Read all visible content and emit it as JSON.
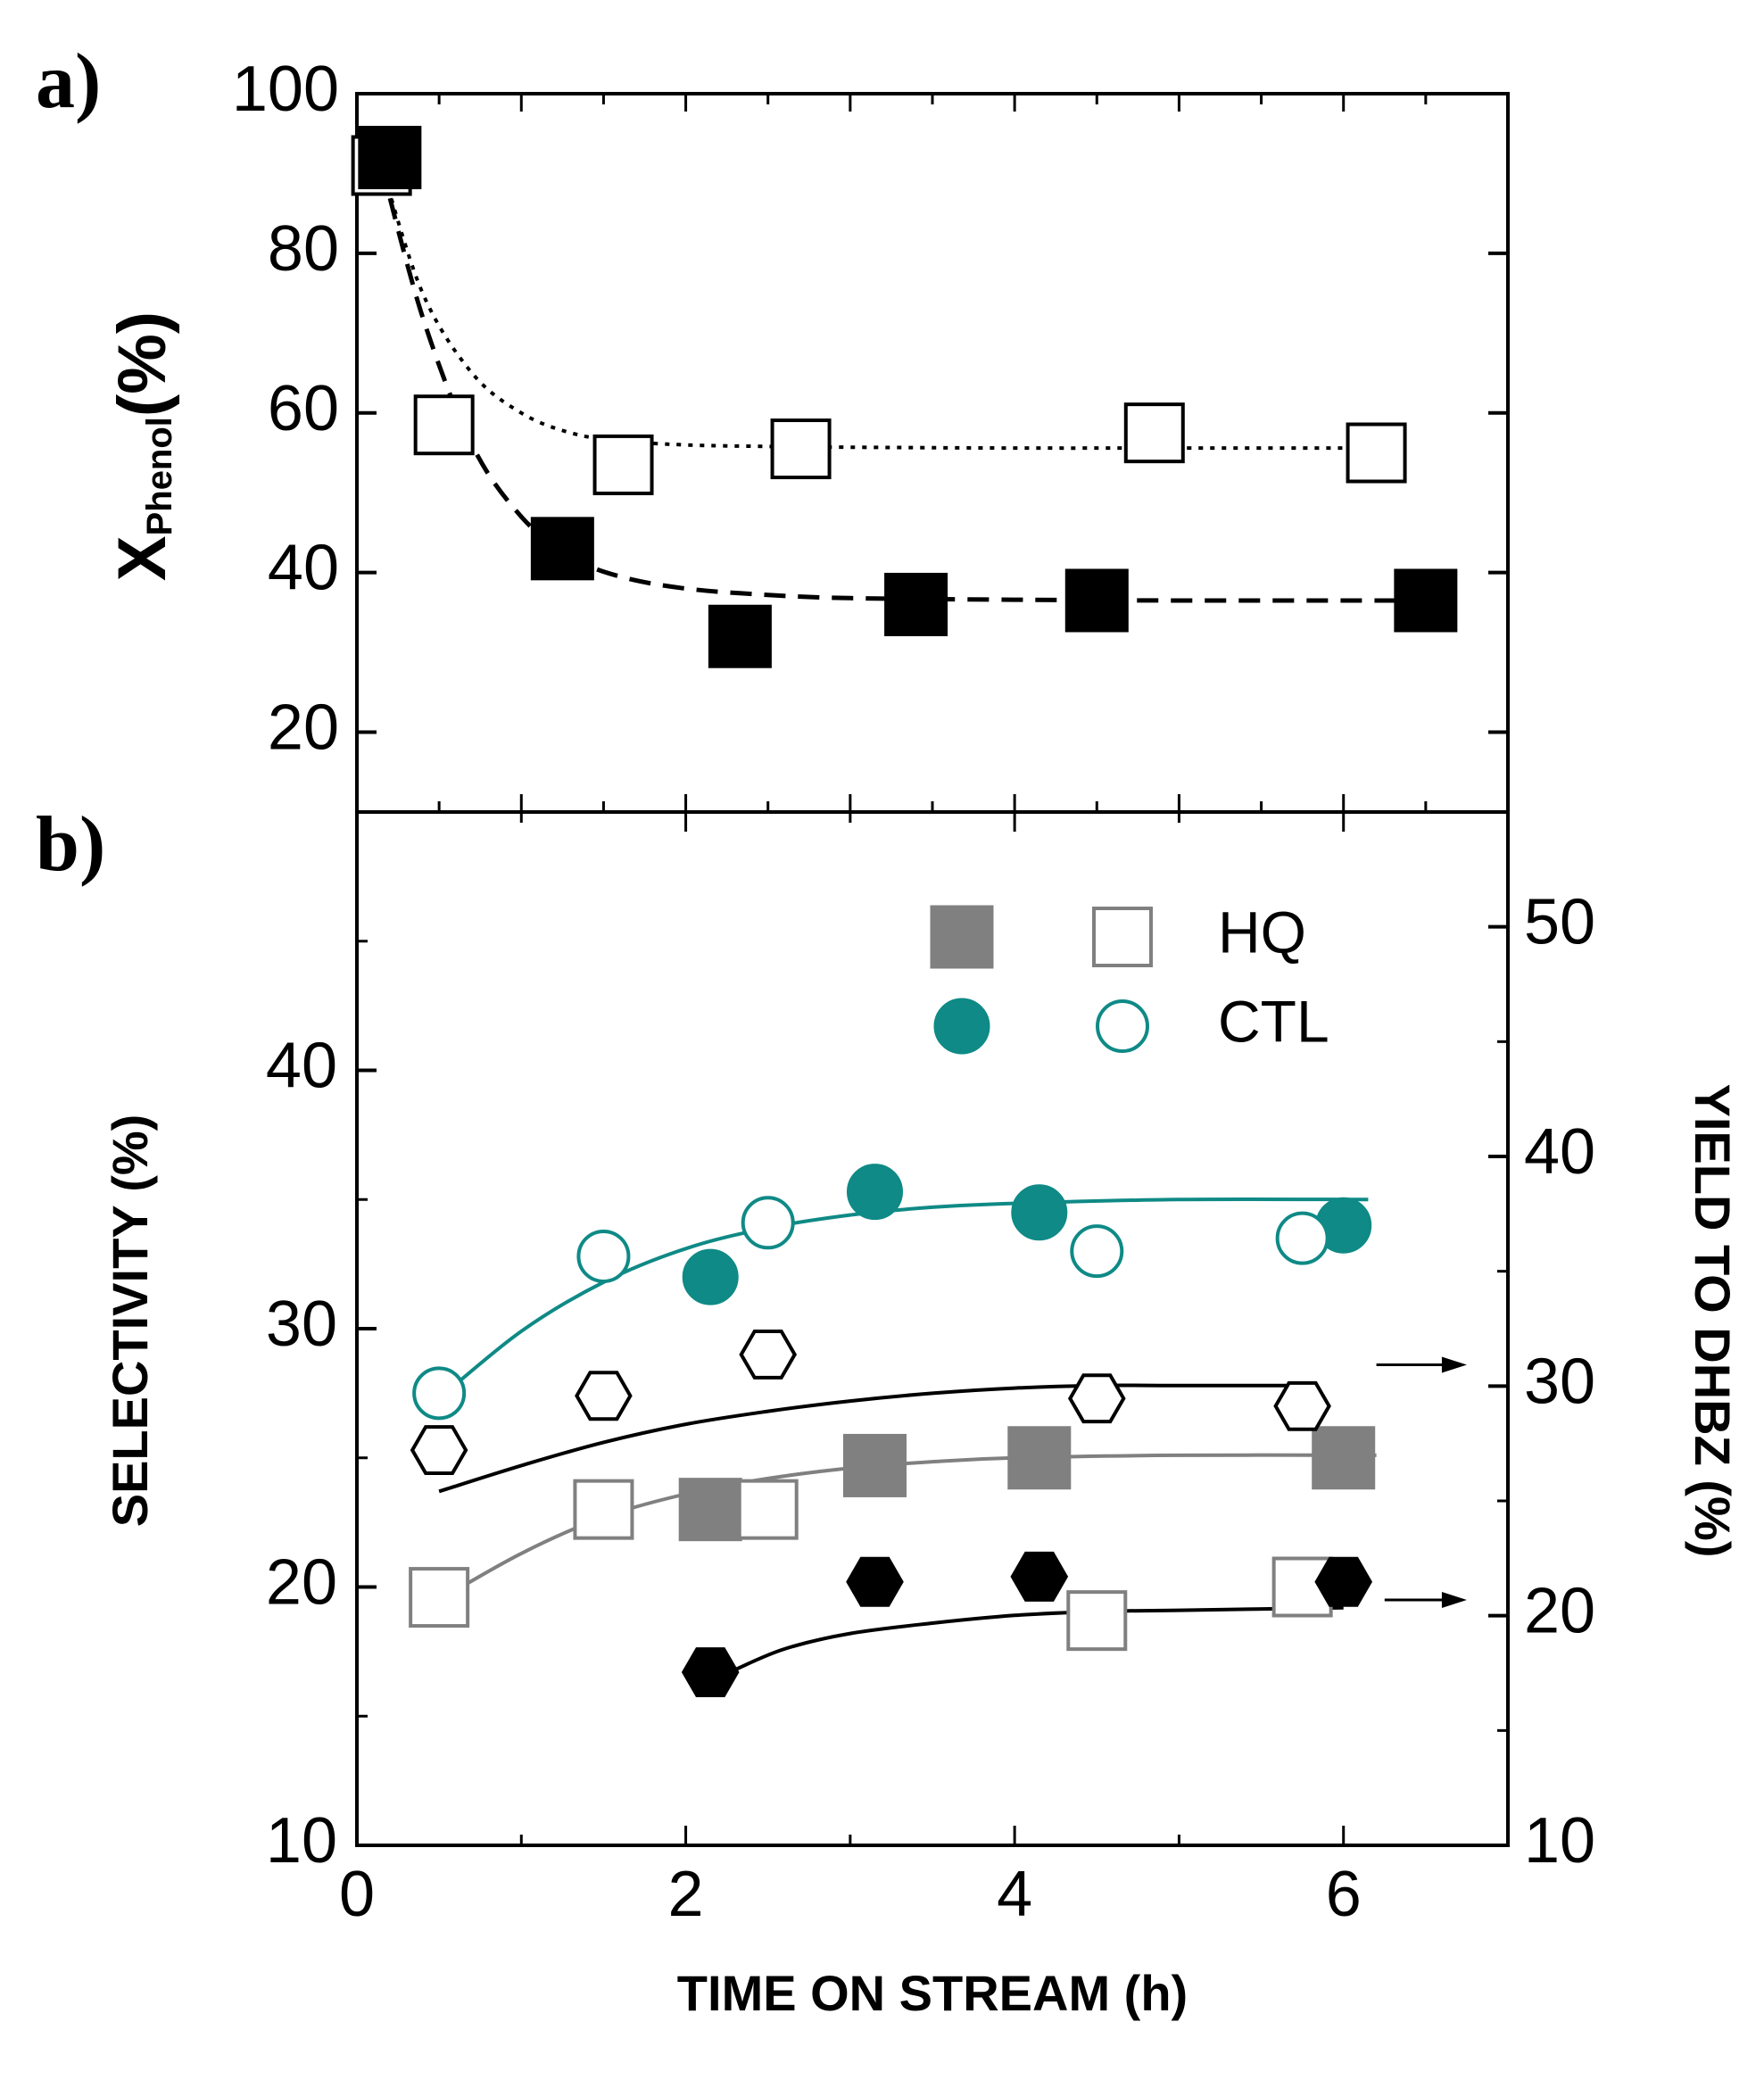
{
  "panel_labels": {
    "a": "a)",
    "b": "b)"
  },
  "colors": {
    "ink": "#000000",
    "teal": "#0f8a86",
    "gray": "#808080"
  },
  "chart_data": [
    {
      "id": "a",
      "type": "scatter",
      "title": "",
      "xlabel": "",
      "ylabel": {
        "main": "X",
        "sub": "Phenol",
        "suffix": "(%)"
      },
      "xlim": [
        0,
        7
      ],
      "ylim": [
        10,
        100
      ],
      "yticks": [
        20,
        40,
        60,
        80,
        100
      ],
      "y_minor_step": 10,
      "x_minor_step": 0.5,
      "series": [
        {
          "name": "open squares",
          "marker": "square-open",
          "color": "#000000",
          "x": [
            0.15,
            0.53,
            1.62,
            2.7,
            4.85,
            6.2
          ],
          "y": [
            91,
            58.5,
            53.5,
            55.5,
            57.5,
            55
          ]
        },
        {
          "name": "filled squares",
          "marker": "square-filled",
          "color": "#000000",
          "x": [
            0.2,
            1.25,
            2.33,
            3.4,
            4.5,
            6.5
          ],
          "y": [
            92,
            43,
            32,
            36,
            36.5,
            36.5
          ]
        }
      ],
      "fits": [
        {
          "name": "open fit (dotted)",
          "style": "dotted",
          "color": "#000000",
          "x": [
            0.15,
            0.4,
            0.7,
            1.0,
            1.3,
            1.6,
            2.0,
            2.5,
            3.0,
            4.0,
            5.0,
            6.2
          ],
          "y": [
            91,
            75,
            65,
            60,
            57.5,
            56.5,
            56,
            55.8,
            55.7,
            55.6,
            55.6,
            55.6
          ]
        },
        {
          "name": "filled fit (dashed)",
          "style": "dashed",
          "color": "#000000",
          "x": [
            0.15,
            0.4,
            0.7,
            1.0,
            1.3,
            1.6,
            2.0,
            2.5,
            3.0,
            4.0,
            5.0,
            6.5
          ],
          "y": [
            91,
            72,
            56,
            47,
            42,
            39.5,
            38,
            37.2,
            36.8,
            36.6,
            36.5,
            36.5
          ]
        }
      ]
    },
    {
      "id": "b",
      "type": "scatter",
      "title": "",
      "xlabel": "TIME ON STREAM (h)",
      "ylabel": "SELECTIVITY (%)",
      "y2label": "YIELD TO DHBZ (%)",
      "xlim": [
        0,
        7
      ],
      "xticks": [
        0,
        2,
        4,
        6
      ],
      "x_minor_step": 1,
      "ylim": [
        10,
        50
      ],
      "yticks": [
        10,
        20,
        30,
        40
      ],
      "y_minor_step": 5,
      "y2lim": [
        10,
        55
      ],
      "y2ticks": [
        10,
        20,
        30,
        40,
        50
      ],
      "y2_minor_step": 5,
      "legend": {
        "placement": "top-right",
        "entries": [
          {
            "label": "HQ",
            "filled": "square-filled",
            "open": "square-open",
            "filled_color": "#808080",
            "open_color": "#808080"
          },
          {
            "label": "CTL",
            "filled": "circle-filled",
            "open": "circle-open",
            "filled_color": "#0f8a86",
            "open_color": "#0f8a86"
          }
        ]
      },
      "series": [
        {
          "name": "CTL filled",
          "marker": "circle-filled",
          "color": "#0f8a86",
          "axis": "left",
          "x": [
            2.15,
            3.15,
            4.15,
            6.0
          ],
          "y": [
            32,
            35.3,
            34.5,
            34
          ]
        },
        {
          "name": "CTL open",
          "marker": "circle-open",
          "color": "#0f8a86",
          "axis": "left",
          "x": [
            0.5,
            1.5,
            2.5,
            4.5,
            5.75
          ],
          "y": [
            27.5,
            32.8,
            34.1,
            33,
            33.5
          ]
        },
        {
          "name": "HQ filled",
          "marker": "square-filled",
          "color": "#808080",
          "axis": "left",
          "x": [
            2.15,
            3.15,
            4.15,
            6.0
          ],
          "y": [
            23,
            24.7,
            25,
            25
          ]
        },
        {
          "name": "HQ open",
          "marker": "square-open",
          "color": "#808080",
          "axis": "left",
          "x": [
            0.5,
            1.5,
            2.5,
            4.5,
            5.75
          ],
          "y": [
            19.6,
            23,
            23,
            18.7,
            20
          ]
        },
        {
          "name": "DHBZ yield filled",
          "marker": "hexagon-filled",
          "color": "#000000",
          "axis": "left",
          "x": [
            2.15,
            3.15,
            4.15,
            6.0
          ],
          "y": [
            16.7,
            20.2,
            20.4,
            20.2
          ]
        },
        {
          "name": "DHBZ yield open",
          "marker": "hexagon-open",
          "color": "#000000",
          "axis": "left",
          "x": [
            0.5,
            1.5,
            2.5,
            4.5,
            5.75
          ],
          "y": [
            25.3,
            27.4,
            29,
            27.3,
            27
          ]
        }
      ],
      "fits": [
        {
          "name": "CTL fit",
          "style": "solid",
          "color": "#0f8a86",
          "x": [
            0.5,
            1.0,
            1.5,
            2.0,
            2.5,
            3.0,
            3.5,
            4.0,
            5.0,
            6.15
          ],
          "y": [
            27.3,
            29.9,
            31.8,
            33.1,
            33.9,
            34.4,
            34.7,
            34.85,
            35.0,
            35.0
          ]
        },
        {
          "name": "HQ fit",
          "style": "solid",
          "color": "#808080",
          "x": [
            0.5,
            1.0,
            1.5,
            2.0,
            2.5,
            3.0,
            3.5,
            4.0,
            5.0,
            6.2
          ],
          "y": [
            19.5,
            21.3,
            22.7,
            23.6,
            24.2,
            24.6,
            24.85,
            25.0,
            25.1,
            25.1
          ]
        },
        {
          "name": "DHBZ open fit",
          "style": "solid",
          "color": "#000000",
          "x": [
            0.5,
            1.0,
            1.5,
            2.0,
            2.5,
            3.0,
            3.5,
            4.0,
            4.5,
            5.0,
            5.75
          ],
          "y": [
            23.7,
            24.7,
            25.6,
            26.3,
            26.8,
            27.2,
            27.5,
            27.7,
            27.8,
            27.8,
            27.8
          ]
        },
        {
          "name": "DHBZ filled fit",
          "style": "solid",
          "color": "#000000",
          "x": [
            2.3,
            2.6,
            3.0,
            3.5,
            4.0,
            4.5,
            5.0,
            6.0
          ],
          "y": [
            16.8,
            17.6,
            18.2,
            18.6,
            18.9,
            19.05,
            19.1,
            19.2
          ]
        }
      ],
      "annotations": [
        {
          "type": "arrow",
          "from": [
            6.2,
            28.6
          ],
          "to": [
            6.75,
            28.6
          ],
          "meaning": "open hexagons refer to right axis"
        },
        {
          "type": "arrow",
          "from": [
            6.25,
            19.5
          ],
          "to": [
            6.75,
            19.5
          ],
          "meaning": "filled hexagons refer to right axis"
        }
      ]
    }
  ]
}
